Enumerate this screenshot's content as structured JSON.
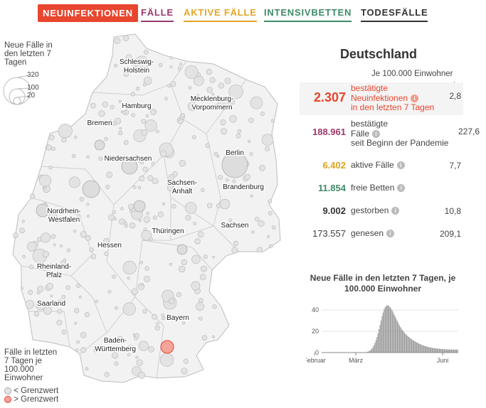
{
  "tabs": [
    {
      "label": "NEUINFEKTIONEN",
      "color": "#e8462e",
      "active": true
    },
    {
      "label": "FÄLLE",
      "color": "#9b3a6b",
      "active": false
    },
    {
      "label": "AKTIVE FÄLLE",
      "color": "#e5a526",
      "active": false
    },
    {
      "label": "INTENSIVBETTEN",
      "color": "#3f8a68",
      "active": false
    },
    {
      "label": "TODESFÄLLE",
      "color": "#333333",
      "active": false
    }
  ],
  "size_legend": {
    "title_lines": [
      "Neue Fälle in",
      "den letzten 7",
      "Tagen"
    ],
    "values": [
      "320",
      "100",
      "20"
    ]
  },
  "color_legend": {
    "title_lines": [
      "Fälle in letzten",
      "7 Tagen je",
      "100.000",
      "Einwohner"
    ],
    "below": "< Grenzwert",
    "above": "> Grenzwert"
  },
  "states": [
    "Schleswig-\nHolstein",
    "Hamburg",
    "Mecklenburg-\nVorpommern",
    "Bremen",
    "Niedersachsen",
    "Berlin",
    "Brandenburg",
    "Sachsen-\nAnhalt",
    "Nordrhein-\nWestfalen",
    "Sachsen",
    "Thüringen",
    "Hessen",
    "Rheinland-\nPfalz",
    "Saarland",
    "Bayern",
    "Baden-\nWürttemberg"
  ],
  "panel": {
    "title": "Deutschland",
    "per100k_label": "Je 100.000 Einwohner",
    "arrow": "↓",
    "rows": [
      {
        "value": "2.307",
        "label_lines": [
          "bestätigte",
          "Neuinfektionen",
          "in den letzten 7 Tagen"
        ],
        "rate": "2,8",
        "color": "#e8462e"
      },
      {
        "value": "188.961",
        "label_lines": [
          "bestätigte",
          "Fälle",
          "seit Beginn der Pandemie"
        ],
        "rate": "227,6",
        "color": "#9b3a6b"
      },
      {
        "value": "6.402",
        "label_lines": [
          "aktive Fälle"
        ],
        "rate": "7,7",
        "color": "#d9a21f"
      },
      {
        "value": "11.854",
        "label_lines": [
          "freie Betten"
        ],
        "rate": "",
        "color": "#3f8a68"
      },
      {
        "value": "9.002",
        "label_lines": [
          "gestorben"
        ],
        "rate": "10,8",
        "color": "#333333"
      },
      {
        "value": "173.557",
        "label_lines": [
          "genesen"
        ],
        "rate": "209,1",
        "color": "#444444"
      }
    ],
    "info_glyph": "i"
  },
  "chart_data": {
    "type": "bar",
    "title": "Neue Fälle in den letzten 7 Tagen, je 100.000 Einwohner",
    "x_ticks": [
      "Februar",
      "März",
      "Juni"
    ],
    "y_ticks": [
      0,
      20,
      40
    ],
    "ylim": [
      0,
      48
    ],
    "values": [
      0,
      0,
      0,
      0,
      0,
      0,
      0,
      0,
      0,
      0,
      0,
      0,
      0,
      0,
      0,
      0,
      0,
      0,
      0,
      0,
      0,
      0,
      0,
      0,
      0,
      0,
      0,
      0,
      0,
      0,
      0,
      0,
      0,
      0,
      0,
      0,
      0,
      0,
      0.1,
      0.2,
      0.3,
      0.5,
      0.8,
      1.2,
      1.8,
      2.6,
      3.6,
      5,
      6.8,
      9,
      11.5,
      14.5,
      18,
      22,
      26,
      30,
      34,
      37.5,
      40.5,
      42.5,
      43.8,
      44.3,
      44.2,
      43.6,
      42.4,
      41,
      39.4,
      37.6,
      35.5,
      33.5,
      31.5,
      29.5,
      27.5,
      25.5,
      24,
      22.5,
      21,
      19.8,
      18.6,
      17.5,
      16.5,
      15.6,
      14.8,
      14,
      13.2,
      12.5,
      11.8,
      11.2,
      10.6,
      10,
      9.5,
      9,
      8.5,
      8,
      7.6,
      7.2,
      6.8,
      6.5,
      6.2,
      5.9,
      5.6,
      5.3,
      5.1,
      4.9,
      4.7,
      4.5,
      4.3,
      4.2,
      4,
      3.9,
      3.8,
      3.7,
      3.6,
      3.5,
      3.4,
      3.3,
      3.2,
      3.1,
      3.1,
      3,
      3,
      2.9,
      2.9,
      2.9,
      2.8,
      2.8,
      2.8,
      2.8,
      2.8,
      2.8,
      2.8
    ]
  }
}
